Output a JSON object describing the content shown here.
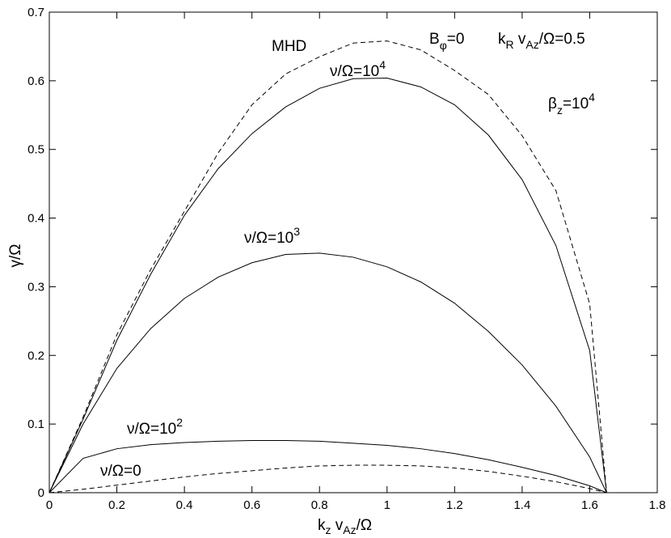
{
  "chart_data": {
    "type": "line",
    "xlabel": {
      "main": "k",
      "sub1": "z",
      "mid": " v",
      "sub2": "Az",
      "tail": "/Ω"
    },
    "ylabel": "γ/Ω",
    "xlim": [
      0,
      1.8
    ],
    "ylim": [
      0,
      0.7
    ],
    "x_ticks": [
      "0",
      "0.2",
      "0.4",
      "0.6",
      "0.8",
      "1",
      "1.2",
      "1.4",
      "1.6",
      "1.8"
    ],
    "y_ticks": [
      "0",
      "0.1",
      "0.2",
      "0.3",
      "0.4",
      "0.5",
      "0.6",
      "0.7"
    ],
    "grid": false,
    "series": [
      {
        "name": "MHD",
        "style": "dashed",
        "points": [
          [
            0,
            0
          ],
          [
            0.1,
            0.11
          ],
          [
            0.2,
            0.23
          ],
          [
            0.3,
            0.325
          ],
          [
            0.4,
            0.41
          ],
          [
            0.5,
            0.495
          ],
          [
            0.6,
            0.565
          ],
          [
            0.7,
            0.61
          ],
          [
            0.8,
            0.635
          ],
          [
            0.9,
            0.655
          ],
          [
            1.0,
            0.658
          ],
          [
            1.1,
            0.645
          ],
          [
            1.2,
            0.615
          ],
          [
            1.3,
            0.58
          ],
          [
            1.4,
            0.52
          ],
          [
            1.5,
            0.44
          ],
          [
            1.6,
            0.275
          ],
          [
            1.65,
            0
          ]
        ]
      },
      {
        "name": "ν/Ω=10^4",
        "style": "solid",
        "points": [
          [
            0,
            0
          ],
          [
            0.1,
            0.107
          ],
          [
            0.2,
            0.222
          ],
          [
            0.3,
            0.318
          ],
          [
            0.4,
            0.404
          ],
          [
            0.5,
            0.472
          ],
          [
            0.6,
            0.523
          ],
          [
            0.7,
            0.562
          ],
          [
            0.8,
            0.589
          ],
          [
            0.9,
            0.603
          ],
          [
            1.0,
            0.604
          ],
          [
            1.1,
            0.591
          ],
          [
            1.2,
            0.565
          ],
          [
            1.3,
            0.521
          ],
          [
            1.4,
            0.456
          ],
          [
            1.5,
            0.36
          ],
          [
            1.6,
            0.207
          ],
          [
            1.65,
            0
          ]
        ]
      },
      {
        "name": "ν/Ω=10^3",
        "style": "solid",
        "points": [
          [
            0,
            0
          ],
          [
            0.1,
            0.1
          ],
          [
            0.2,
            0.181
          ],
          [
            0.3,
            0.239
          ],
          [
            0.4,
            0.283
          ],
          [
            0.5,
            0.314
          ],
          [
            0.6,
            0.335
          ],
          [
            0.7,
            0.347
          ],
          [
            0.8,
            0.349
          ],
          [
            0.9,
            0.343
          ],
          [
            1.0,
            0.329
          ],
          [
            1.1,
            0.307
          ],
          [
            1.2,
            0.276
          ],
          [
            1.3,
            0.235
          ],
          [
            1.4,
            0.186
          ],
          [
            1.5,
            0.126
          ],
          [
            1.6,
            0.052
          ],
          [
            1.65,
            0
          ]
        ]
      },
      {
        "name": "ν/Ω=10^2",
        "style": "solid",
        "points": [
          [
            0,
            0
          ],
          [
            0.1,
            0.05
          ],
          [
            0.2,
            0.064
          ],
          [
            0.3,
            0.07
          ],
          [
            0.4,
            0.073
          ],
          [
            0.5,
            0.075
          ],
          [
            0.6,
            0.076
          ],
          [
            0.7,
            0.076
          ],
          [
            0.8,
            0.075
          ],
          [
            0.9,
            0.072
          ],
          [
            1.0,
            0.069
          ],
          [
            1.1,
            0.064
          ],
          [
            1.2,
            0.057
          ],
          [
            1.3,
            0.048
          ],
          [
            1.4,
            0.037
          ],
          [
            1.5,
            0.025
          ],
          [
            1.6,
            0.01
          ],
          [
            1.65,
            0
          ]
        ]
      },
      {
        "name": "ν/Ω=0",
        "style": "dashed",
        "points": [
          [
            0,
            0
          ],
          [
            0.1,
            0.005
          ],
          [
            0.2,
            0.011
          ],
          [
            0.3,
            0.017
          ],
          [
            0.4,
            0.023
          ],
          [
            0.5,
            0.028
          ],
          [
            0.6,
            0.032
          ],
          [
            0.7,
            0.036
          ],
          [
            0.8,
            0.039
          ],
          [
            0.9,
            0.04
          ],
          [
            1.0,
            0.04
          ],
          [
            1.1,
            0.039
          ],
          [
            1.2,
            0.036
          ],
          [
            1.3,
            0.031
          ],
          [
            1.4,
            0.024
          ],
          [
            1.5,
            0.016
          ],
          [
            1.6,
            0.006
          ],
          [
            1.65,
            0
          ]
        ]
      }
    ],
    "annotations": {
      "mhd": "MHD",
      "bphi": {
        "main": "B",
        "sub": "φ",
        "tail": "=0"
      },
      "kr": {
        "main": "k",
        "sub1": "R",
        "mid": " v",
        "sub2": "Az",
        "tail": "/Ω=0.5"
      },
      "beta": {
        "main": "β",
        "sub": "z",
        "tail": "=10",
        "sup": "4"
      },
      "nu4": {
        "main": "ν/Ω=10",
        "sup": "4"
      },
      "nu3": {
        "main": "ν/Ω=10",
        "sup": "3"
      },
      "nu2": {
        "main": "ν/Ω=10",
        "sup": "2"
      },
      "nu0": "ν/Ω=0"
    }
  }
}
